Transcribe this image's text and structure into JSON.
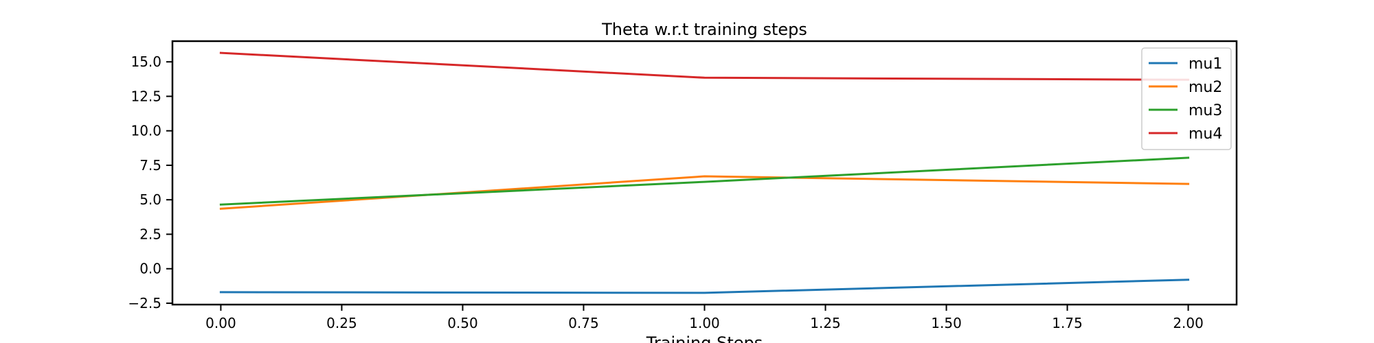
{
  "chart_data": {
    "type": "line",
    "title": "Theta w.r.t training steps",
    "xlabel": "Training Steps",
    "ylabel": "",
    "x": [
      0,
      1,
      2
    ],
    "xlim": [
      -0.1,
      2.1
    ],
    "ylim": [
      -2.6,
      16.5
    ],
    "xticks": [
      0.0,
      0.25,
      0.5,
      0.75,
      1.0,
      1.25,
      1.5,
      1.75,
      2.0
    ],
    "xtick_labels": [
      "0.00",
      "0.25",
      "0.50",
      "0.75",
      "1.00",
      "1.25",
      "1.50",
      "1.75",
      "2.00"
    ],
    "yticks": [
      -2.5,
      0.0,
      2.5,
      5.0,
      7.5,
      10.0,
      12.5,
      15.0
    ],
    "ytick_labels": [
      "−2.5",
      "0.0",
      "2.5",
      "5.0",
      "7.5",
      "10.0",
      "12.5",
      "15.0"
    ],
    "grid": false,
    "legend_position": "top-right",
    "series": [
      {
        "name": "mu1",
        "color": "#1f77b4",
        "values": [
          -1.7,
          -1.75,
          -0.8
        ]
      },
      {
        "name": "mu2",
        "color": "#ff7f0e",
        "values": [
          4.35,
          6.7,
          6.15
        ]
      },
      {
        "name": "mu3",
        "color": "#2ca02c",
        "values": [
          4.65,
          6.3,
          8.05
        ]
      },
      {
        "name": "mu4",
        "color": "#d62728",
        "values": [
          15.65,
          13.85,
          13.7
        ]
      }
    ]
  }
}
